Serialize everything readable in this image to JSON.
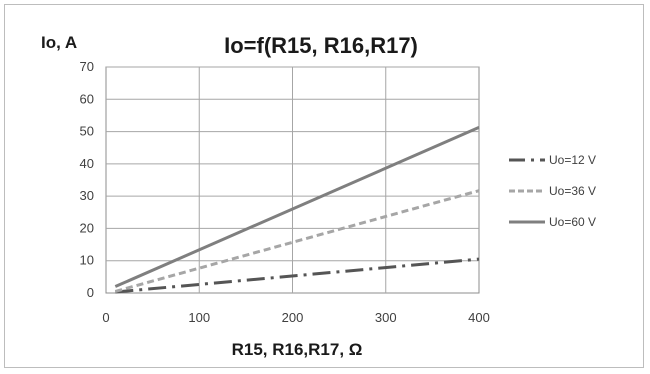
{
  "chart_data": {
    "type": "line",
    "title": "Io=f(R15, R16,R17)",
    "ylabel": "Io, A",
    "xlabel": "R15, R16,R17,  Ω",
    "xlim": [
      0,
      400
    ],
    "ylim": [
      0,
      70
    ],
    "xticks": [
      "0",
      "100",
      "200",
      "300",
      "400"
    ],
    "yticks": [
      "0",
      "10",
      "20",
      "30",
      "40",
      "50",
      "60",
      "70"
    ],
    "grid": true,
    "legend_position": "right",
    "x": [
      10,
      400
    ],
    "series": [
      {
        "name": "Uo=12 V",
        "x": [
          10,
          400
        ],
        "values": [
          0.3,
          10.5
        ],
        "style": "dash-dot",
        "color": "#555555"
      },
      {
        "name": "Uo=36 V",
        "x": [
          10,
          400
        ],
        "values": [
          0.5,
          31.7
        ],
        "style": "dashed",
        "color": "#a6a6a6"
      },
      {
        "name": "Uo=60 V",
        "x": [
          10,
          400
        ],
        "values": [
          2.0,
          51.3
        ],
        "style": "solid",
        "color": "#7f7f7f"
      }
    ]
  }
}
